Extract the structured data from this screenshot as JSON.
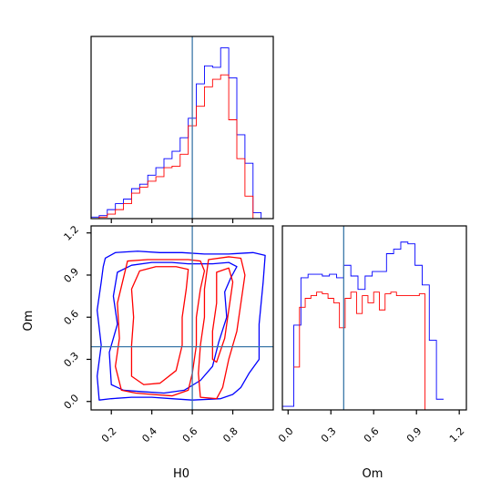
{
  "chart_data": {
    "type": "corner",
    "parameters": [
      "H0",
      "Om"
    ],
    "truth": {
      "H0": 0.6,
      "Om": 0.39
    },
    "colors": {
      "blue_series": "#0000ff",
      "red_series": "#ff0000",
      "truth_line": "#3b78a8"
    },
    "panels": [
      {
        "id": "hist_H0",
        "type": "step-histogram",
        "xlim": [
          0.1,
          1.0
        ],
        "ticks": [
          0.2,
          0.4,
          0.6,
          0.8
        ],
        "series": [
          {
            "color": "blue",
            "edges": [
              0.1,
              0.14,
              0.18,
              0.22,
              0.26,
              0.3,
              0.34,
              0.38,
              0.42,
              0.46,
              0.5,
              0.54,
              0.58,
              0.62,
              0.66,
              0.7,
              0.74,
              0.78,
              0.82,
              0.86,
              0.9,
              0.94,
              0.98
            ],
            "values": [
              1,
              2,
              6,
              10,
              13,
              20,
              23,
              29,
              34,
              40,
              45,
              54,
              67,
              90,
              102,
              101,
              114,
              94,
              56,
              37,
              4,
              0
            ]
          },
          {
            "color": "red",
            "edges": [
              0.1,
              0.14,
              0.18,
              0.22,
              0.26,
              0.3,
              0.34,
              0.38,
              0.42,
              0.46,
              0.5,
              0.54,
              0.58,
              0.62,
              0.66,
              0.7,
              0.74,
              0.78,
              0.82,
              0.86,
              0.9,
              0.94,
              0.98
            ],
            "values": [
              0,
              1,
              3,
              6,
              10,
              17,
              21,
              25,
              28,
              34,
              35,
              43,
              62,
              75,
              88,
              93,
              96,
              66,
              40,
              15,
              0,
              0
            ]
          }
        ]
      },
      {
        "id": "hist_Om",
        "type": "step-histogram",
        "xlim": [
          -0.04,
          1.25
        ],
        "ticks": [
          0.0,
          0.3,
          0.6,
          0.9,
          1.2
        ],
        "xlabel": "Om",
        "series": [
          {
            "color": "blue",
            "edges": [
              -0.04,
              0.04,
              0.09,
              0.14,
              0.19,
              0.24,
              0.29,
              0.34,
              0.39,
              0.44,
              0.49,
              0.54,
              0.59,
              0.64,
              0.69,
              0.74,
              0.79,
              0.84,
              0.89,
              0.94,
              0.99,
              1.04,
              1.09
            ],
            "values": [
              4,
              95,
              148,
              152,
              152,
              150,
              152,
              148,
              162,
              150,
              135,
              150,
              155,
              155,
              175,
              180,
              188,
              186,
              162,
              140,
              78,
              12
            ]
          },
          {
            "color": "red",
            "edges": [
              0.04,
              0.08,
              0.12,
              0.16,
              0.2,
              0.24,
              0.28,
              0.32,
              0.36,
              0.4,
              0.44,
              0.48,
              0.52,
              0.56,
              0.6,
              0.64,
              0.68,
              0.72,
              0.76,
              0.8,
              0.84,
              0.88,
              0.92,
              0.96,
              1.0
            ],
            "values": [
              48,
              115,
              125,
              128,
              132,
              130,
              125,
              120,
              92,
              125,
              132,
              108,
              128,
              120,
              132,
              112,
              130,
              132,
              128,
              128,
              128,
              128,
              130,
              0
            ]
          }
        ]
      },
      {
        "id": "contour_H0_Om",
        "type": "contour",
        "xlim": [
          0.1,
          1.0
        ],
        "ylim": [
          -0.06,
          1.25
        ],
        "xticks": [
          0.2,
          0.4,
          0.6,
          0.8
        ],
        "yticks": [
          0.0,
          0.3,
          0.6,
          0.9,
          1.2
        ],
        "xlabel": "H0",
        "ylabel": "Om",
        "contours": [
          {
            "color": "blue",
            "points": [
              [
                0.17,
                1.02
              ],
              [
                0.22,
                1.06
              ],
              [
                0.33,
                1.07
              ],
              [
                0.44,
                1.06
              ],
              [
                0.55,
                1.06
              ],
              [
                0.66,
                1.05
              ],
              [
                0.78,
                1.05
              ],
              [
                0.9,
                1.06
              ],
              [
                0.96,
                1.04
              ],
              [
                0.95,
                0.85
              ],
              [
                0.93,
                0.55
              ],
              [
                0.93,
                0.3
              ],
              [
                0.88,
                0.2
              ],
              [
                0.84,
                0.1
              ],
              [
                0.8,
                0.05
              ],
              [
                0.74,
                0.02
              ],
              [
                0.6,
                0.01
              ],
              [
                0.5,
                0.02
              ],
              [
                0.4,
                0.03
              ],
              [
                0.3,
                0.03
              ],
              [
                0.2,
                0.02
              ],
              [
                0.14,
                0.01
              ],
              [
                0.13,
                0.18
              ],
              [
                0.15,
                0.4
              ],
              [
                0.13,
                0.65
              ],
              [
                0.15,
                0.85
              ],
              [
                0.16,
                0.96
              ],
              [
                0.17,
                1.02
              ]
            ]
          },
          {
            "color": "blue",
            "points": [
              [
                0.23,
                0.92
              ],
              [
                0.3,
                0.97
              ],
              [
                0.4,
                0.99
              ],
              [
                0.5,
                0.99
              ],
              [
                0.58,
                0.98
              ],
              [
                0.7,
                0.98
              ],
              [
                0.78,
                0.99
              ],
              [
                0.82,
                0.96
              ],
              [
                0.79,
                0.88
              ],
              [
                0.76,
                0.78
              ],
              [
                0.77,
                0.6
              ],
              [
                0.73,
                0.42
              ],
              [
                0.7,
                0.25
              ],
              [
                0.64,
                0.15
              ],
              [
                0.56,
                0.08
              ],
              [
                0.46,
                0.06
              ],
              [
                0.35,
                0.07
              ],
              [
                0.26,
                0.08
              ],
              [
                0.2,
                0.12
              ],
              [
                0.19,
                0.35
              ],
              [
                0.23,
                0.55
              ],
              [
                0.21,
                0.75
              ],
              [
                0.23,
                0.92
              ]
            ]
          },
          {
            "color": "red",
            "points": [
              [
                0.28,
                1.0
              ],
              [
                0.38,
                1.01
              ],
              [
                0.48,
                1.01
              ],
              [
                0.58,
                1.01
              ],
              [
                0.64,
                1.0
              ],
              [
                0.66,
                0.93
              ],
              [
                0.64,
                0.8
              ],
              [
                0.62,
                0.6
              ],
              [
                0.62,
                0.4
              ],
              [
                0.6,
                0.2
              ],
              [
                0.58,
                0.08
              ],
              [
                0.5,
                0.04
              ],
              [
                0.4,
                0.05
              ],
              [
                0.32,
                0.06
              ],
              [
                0.25,
                0.08
              ],
              [
                0.22,
                0.25
              ],
              [
                0.24,
                0.45
              ],
              [
                0.23,
                0.7
              ],
              [
                0.26,
                0.88
              ],
              [
                0.28,
                1.0
              ]
            ]
          },
          {
            "color": "red",
            "points": [
              [
                0.34,
                0.93
              ],
              [
                0.42,
                0.96
              ],
              [
                0.52,
                0.96
              ],
              [
                0.58,
                0.94
              ],
              [
                0.57,
                0.8
              ],
              [
                0.55,
                0.6
              ],
              [
                0.55,
                0.4
              ],
              [
                0.52,
                0.22
              ],
              [
                0.44,
                0.13
              ],
              [
                0.36,
                0.12
              ],
              [
                0.3,
                0.18
              ],
              [
                0.3,
                0.4
              ],
              [
                0.31,
                0.6
              ],
              [
                0.3,
                0.8
              ],
              [
                0.34,
                0.93
              ]
            ]
          },
          {
            "color": "red",
            "points": [
              [
                0.68,
                1.01
              ],
              [
                0.78,
                1.03
              ],
              [
                0.84,
                1.02
              ],
              [
                0.86,
                0.9
              ],
              [
                0.84,
                0.7
              ],
              [
                0.82,
                0.5
              ],
              [
                0.78,
                0.3
              ],
              [
                0.75,
                0.1
              ],
              [
                0.72,
                0.02
              ],
              [
                0.64,
                0.03
              ],
              [
                0.63,
                0.2
              ],
              [
                0.64,
                0.4
              ],
              [
                0.66,
                0.6
              ],
              [
                0.66,
                0.8
              ],
              [
                0.68,
                1.01
              ]
            ]
          },
          {
            "color": "red",
            "points": [
              [
                0.72,
                0.92
              ],
              [
                0.78,
                0.95
              ],
              [
                0.8,
                0.85
              ],
              [
                0.78,
                0.65
              ],
              [
                0.76,
                0.45
              ],
              [
                0.72,
                0.28
              ],
              [
                0.7,
                0.3
              ],
              [
                0.7,
                0.5
              ],
              [
                0.72,
                0.7
              ],
              [
                0.72,
                0.92
              ]
            ]
          }
        ]
      }
    ]
  }
}
